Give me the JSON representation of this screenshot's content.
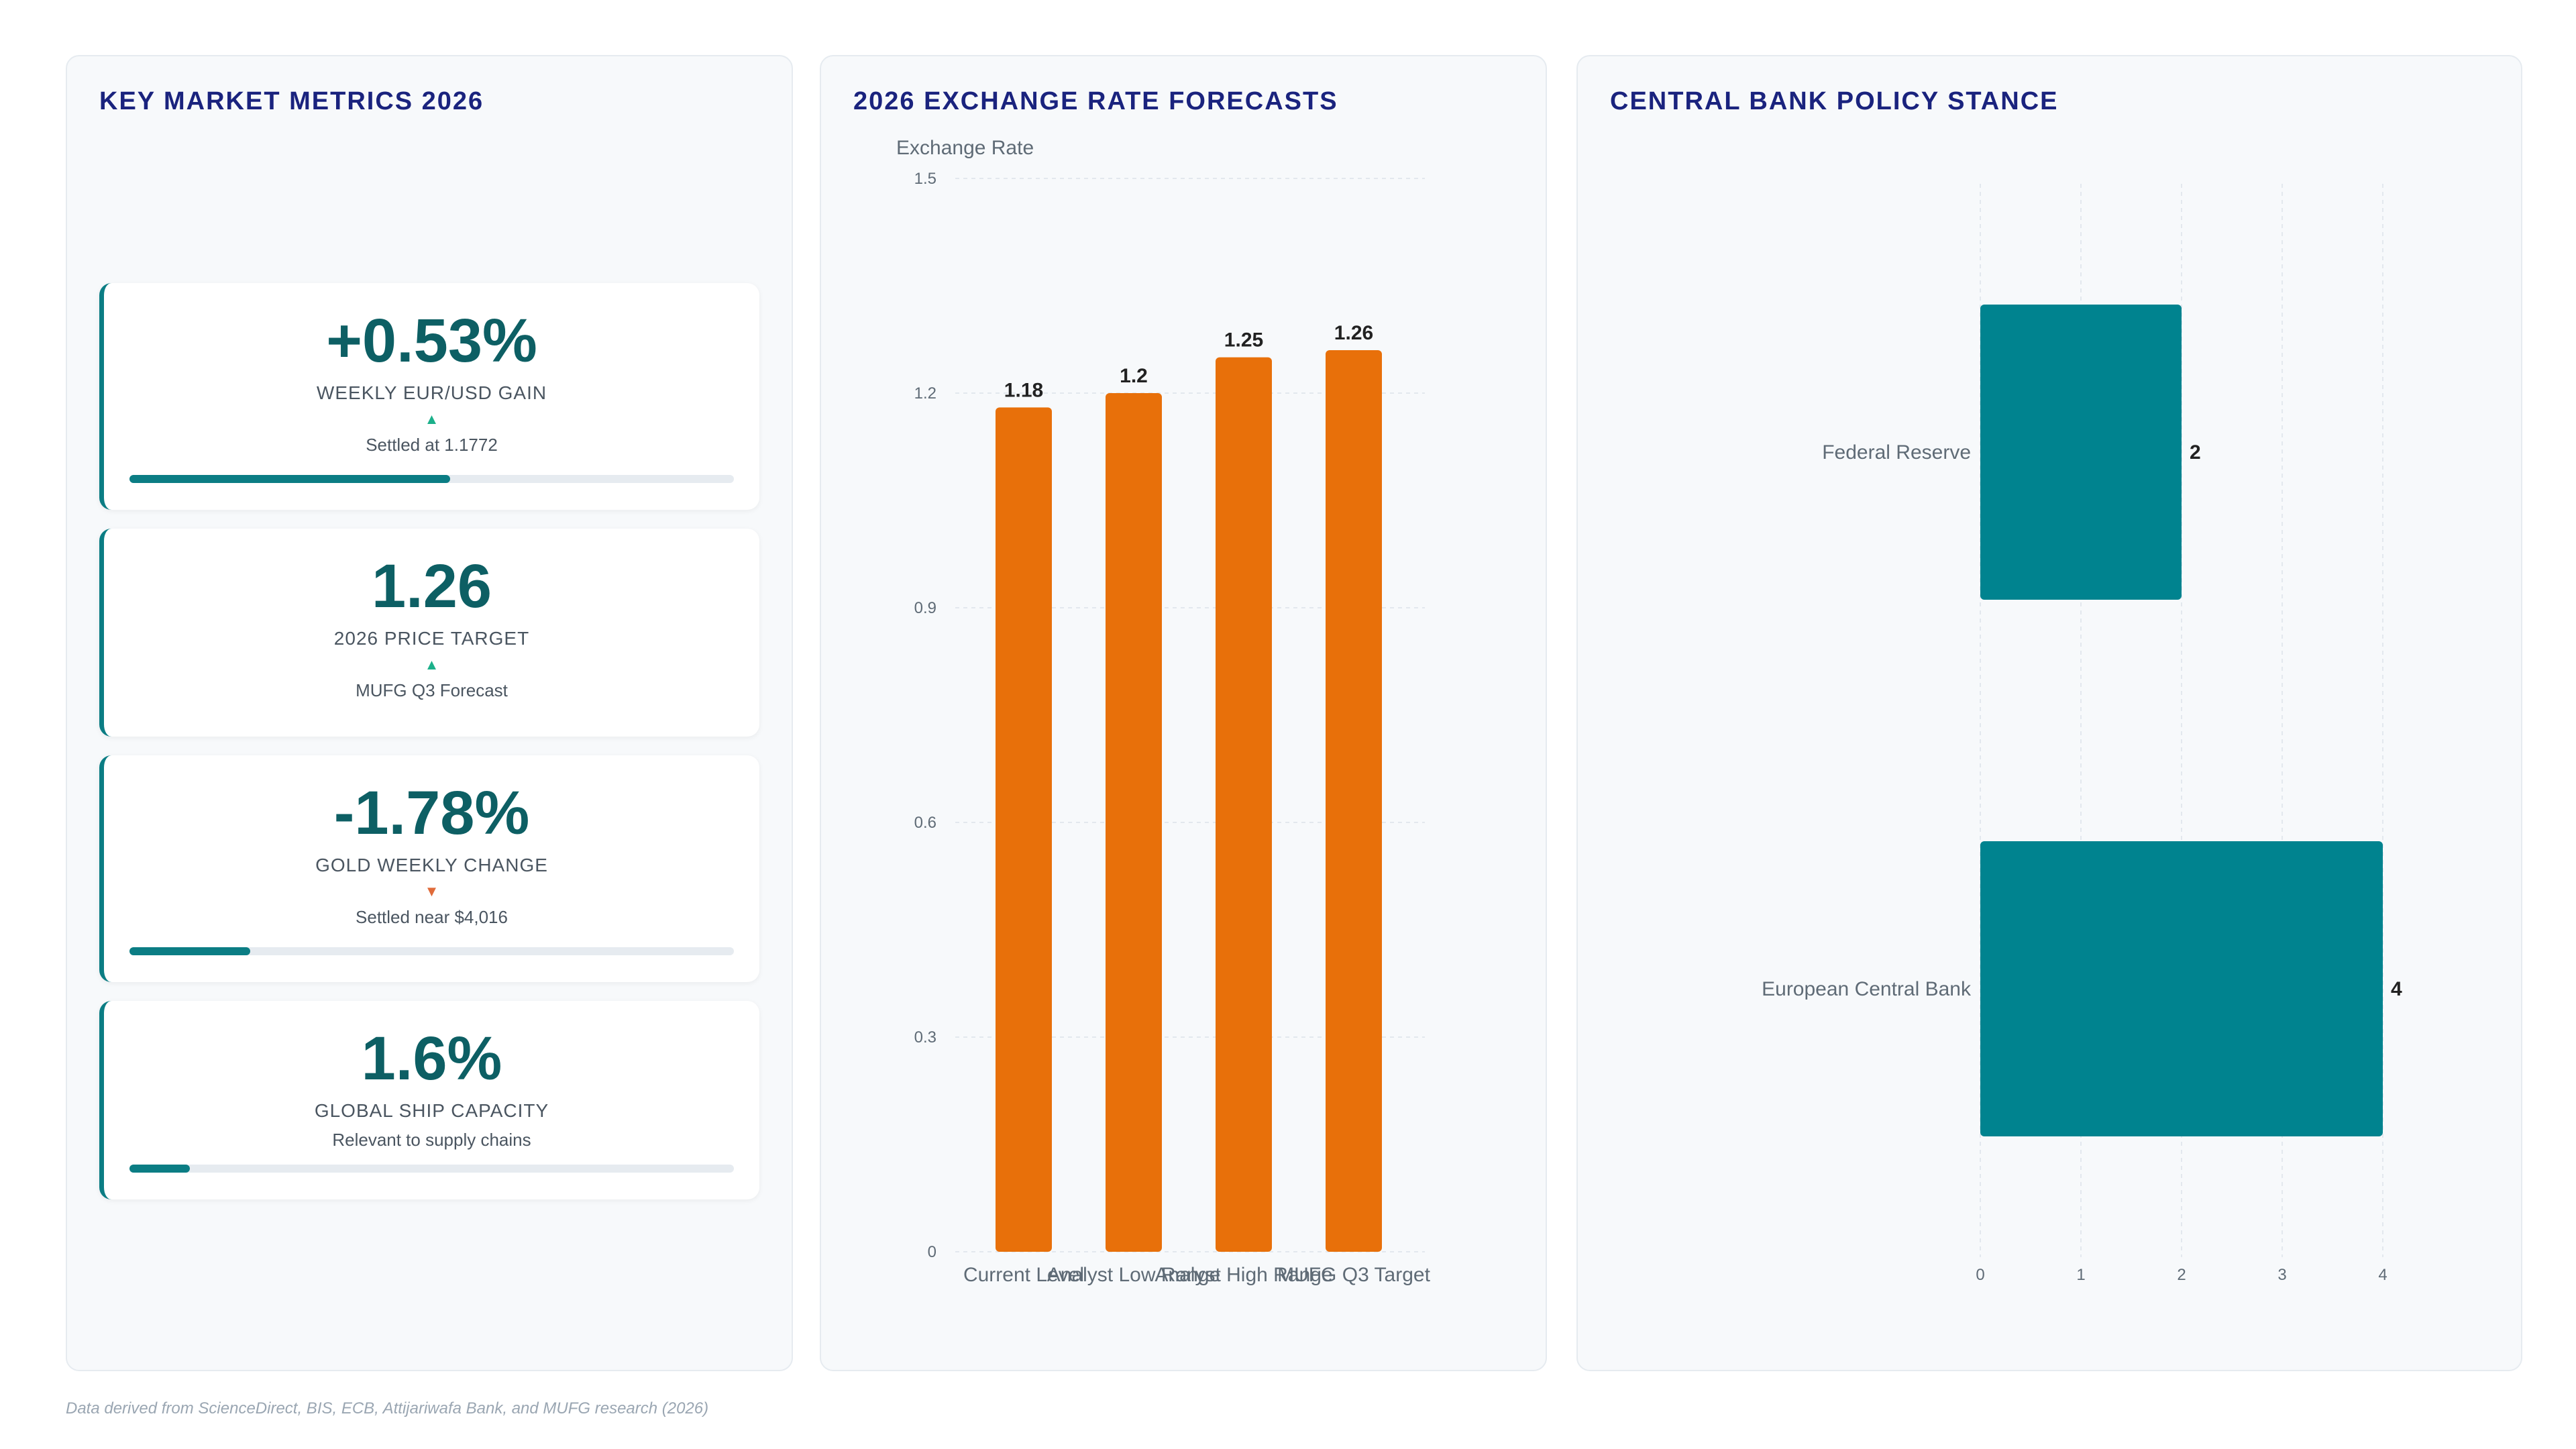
{
  "footer": "Data derived from ScienceDirect, BIS, ECB, Attijariwafa Bank, and MUFG research (2026)",
  "metrics": {
    "title": "KEY MARKET METRICS 2026",
    "cards": [
      {
        "value": "+0.53%",
        "label": "WEEKLY EUR/USD GAIN",
        "trend": "▲",
        "trend_dir": "up",
        "sub": "Settled at 1.1772",
        "progress": 0.53
      },
      {
        "value": "1.26",
        "label": "2026 PRICE TARGET",
        "trend": "▲",
        "trend_dir": "up",
        "sub": "MUFG Q3 Forecast",
        "progress": null
      },
      {
        "value": "-1.78%",
        "label": "GOLD WEEKLY CHANGE",
        "trend": "▼",
        "trend_dir": "down",
        "sub": "Settled near $4,016",
        "progress": 0.2
      },
      {
        "value": "1.6%",
        "label": "GLOBAL SHIP CAPACITY",
        "trend": "",
        "trend_dir": "",
        "sub": "Relevant to supply chains",
        "progress": 0.1
      }
    ]
  },
  "colors": {
    "teal": "#00838f",
    "orange": "#e8700a",
    "title": "#1a237e"
  },
  "chart_data": [
    {
      "type": "bar",
      "title": "2026 EXCHANGE RATE FORECASTS",
      "ylabel": "Exchange Rate",
      "xlabel": "",
      "categories": [
        "Current Level",
        "Analyst Low Range",
        "Analyst High Range",
        "MUFG Q3 Target"
      ],
      "values": [
        1.18,
        1.2,
        1.25,
        1.26
      ],
      "data_labels": [
        "1.18",
        "1.2",
        "1.25",
        "1.26"
      ],
      "ylim": [
        0,
        1.5
      ],
      "yticks": [
        0,
        0.3,
        0.6,
        0.9,
        1.2,
        1.5
      ],
      "ytick_labels": [
        "0",
        "0.3",
        "0.6",
        "0.9",
        "1.2",
        "1.5"
      ],
      "grid": true,
      "legend": "none"
    },
    {
      "type": "bar",
      "orientation": "horizontal",
      "title": "CENTRAL BANK POLICY STANCE",
      "xlabel": "",
      "ylabel": "",
      "categories": [
        "Federal Reserve",
        "European Central Bank"
      ],
      "values": [
        2,
        4
      ],
      "data_labels": [
        "2",
        "4"
      ],
      "xlim": [
        0,
        4
      ],
      "xticks": [
        0,
        1,
        2,
        3,
        4
      ],
      "xtick_labels": [
        "0",
        "1",
        "2",
        "3",
        "4"
      ],
      "grid": true,
      "legend": "none"
    }
  ]
}
